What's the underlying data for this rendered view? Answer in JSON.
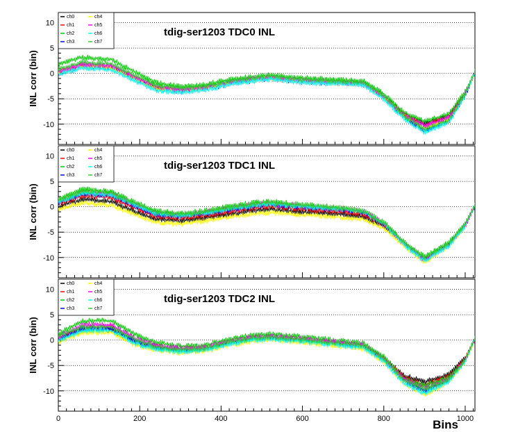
{
  "chart_data": {
    "type": "line",
    "xlabel": "Bins",
    "xlim": [
      0,
      1024
    ],
    "x_ticks": [
      "0",
      "200",
      "400",
      "600",
      "800",
      "1000"
    ],
    "series_colors": {
      "ch0": "#000000",
      "ch1": "#ff0000",
      "ch2": "#00cc00",
      "ch3": "#0000ff",
      "ch4": "#ffff00",
      "ch5": "#ff00ff",
      "ch6": "#00ffff",
      "ch7": "#33cc33"
    },
    "panels": [
      {
        "title": "tdig-ser1203 TDC0 INL",
        "ylabel": "INL corr (bin)",
        "ylim": [
          -14,
          12
        ],
        "y_ticks": [
          "10",
          "5",
          "0",
          "-5",
          "-10"
        ],
        "grid": "horizontal dotted at 10, 5, 0, -5, -10",
        "legend": [
          "ch0",
          "ch1",
          "ch2",
          "ch3",
          "ch4",
          "ch5",
          "ch6",
          "ch7"
        ],
        "x": [
          0,
          60,
          130,
          190,
          240,
          300,
          360,
          420,
          480,
          520,
          600,
          700,
          750,
          800,
          850,
          900,
          960,
          1000,
          1024
        ],
        "series": [
          {
            "name": "ch0",
            "values": [
              0.2,
              1.5,
              1.2,
              -1.0,
              -2.8,
              -3.3,
              -2.8,
              -1.8,
              -1.2,
              -0.8,
              -1.5,
              -1.8,
              -2.0,
              -4.5,
              -8.0,
              -10.0,
              -8.5,
              -4.0,
              0.3
            ]
          },
          {
            "name": "ch1",
            "values": [
              0.3,
              1.6,
              1.3,
              -1.0,
              -2.8,
              -3.4,
              -2.9,
              -1.9,
              -1.3,
              -0.9,
              -1.6,
              -1.9,
              -2.1,
              -4.6,
              -8.2,
              -10.2,
              -8.6,
              -4.1,
              0.3
            ]
          },
          {
            "name": "ch2",
            "values": [
              1.8,
              3.2,
              2.8,
              0.2,
              -1.8,
              -2.6,
              -2.2,
              -1.2,
              -0.6,
              -0.2,
              -0.9,
              -1.3,
              -1.5,
              -4.0,
              -7.8,
              -9.5,
              -8.0,
              -3.6,
              0.3
            ]
          },
          {
            "name": "ch3",
            "values": [
              0.0,
              1.3,
              1.0,
              -1.3,
              -3.1,
              -3.6,
              -3.1,
              -2.1,
              -1.4,
              -1.0,
              -1.7,
              -2.0,
              -2.2,
              -4.9,
              -8.7,
              -11.3,
              -9.4,
              -4.3,
              0.3
            ]
          },
          {
            "name": "ch4",
            "values": [
              0.1,
              1.4,
              1.1,
              -1.2,
              -3.0,
              -3.5,
              -3.0,
              -2.0,
              -1.3,
              -0.9,
              -1.6,
              -1.9,
              -2.1,
              -4.8,
              -8.5,
              -10.8,
              -9.0,
              -4.2,
              0.3
            ]
          },
          {
            "name": "ch5",
            "values": [
              0.4,
              1.8,
              1.5,
              -0.8,
              -2.6,
              -3.2,
              -2.7,
              -1.7,
              -1.1,
              -0.7,
              -1.4,
              -1.8,
              -2.0,
              -4.6,
              -8.3,
              -10.3,
              -8.7,
              -4.0,
              0.3
            ]
          },
          {
            "name": "ch6",
            "values": [
              -0.2,
              1.1,
              0.8,
              -1.5,
              -3.3,
              -3.8,
              -3.3,
              -2.2,
              -1.5,
              -1.1,
              -1.8,
              -2.1,
              -2.3,
              -5.1,
              -9.0,
              -11.6,
              -9.6,
              -4.4,
              0.3
            ]
          },
          {
            "name": "ch7",
            "values": [
              0.8,
              2.2,
              1.9,
              -0.5,
              -2.3,
              -2.9,
              -2.5,
              -1.5,
              -0.9,
              -0.5,
              -1.2,
              -1.6,
              -1.8,
              -4.4,
              -8.4,
              -11.0,
              -9.2,
              -4.1,
              0.3
            ]
          }
        ]
      },
      {
        "title": "tdig-ser1203 TDC1 INL",
        "ylabel": "INL corr (bin)",
        "ylim": [
          -14,
          12
        ],
        "y_ticks": [
          "10",
          "5",
          "0",
          "-5",
          "-10"
        ],
        "grid": "horizontal dotted at 10, 5, 0, -5, -10",
        "legend": [
          "ch0",
          "ch1",
          "ch2",
          "ch3",
          "ch4",
          "ch5",
          "ch6",
          "ch7"
        ],
        "x": [
          0,
          60,
          130,
          190,
          240,
          300,
          360,
          420,
          480,
          520,
          600,
          700,
          750,
          800,
          850,
          900,
          960,
          1000,
          1024
        ],
        "series": [
          {
            "name": "ch0",
            "values": [
              0.0,
              1.5,
              1.0,
              -1.0,
              -2.5,
              -2.8,
              -2.2,
              -1.5,
              -0.8,
              -0.5,
              -1.0,
              -1.5,
              -2.0,
              -3.8,
              -7.0,
              -10.2,
              -7.2,
              -3.5,
              0.3
            ]
          },
          {
            "name": "ch1",
            "values": [
              0.5,
              2.2,
              1.8,
              -0.3,
              -1.9,
              -2.3,
              -1.8,
              -1.0,
              -0.3,
              0.0,
              -0.5,
              -1.0,
              -1.5,
              -3.5,
              -7.2,
              -10.4,
              -7.4,
              -3.6,
              0.3
            ]
          },
          {
            "name": "ch2",
            "values": [
              1.5,
              3.5,
              3.0,
              0.8,
              -0.8,
              -1.3,
              -0.8,
              0.1,
              0.8,
              1.1,
              0.4,
              -0.2,
              -0.8,
              -3.0,
              -7.0,
              -9.8,
              -7.0,
              -3.3,
              0.3
            ]
          },
          {
            "name": "ch3",
            "values": [
              0.8,
              2.6,
              2.2,
              0.1,
              -1.5,
              -1.9,
              -1.4,
              -0.6,
              0.1,
              0.4,
              -0.1,
              -0.6,
              -1.1,
              -3.3,
              -7.3,
              -10.5,
              -7.5,
              -3.7,
              0.3
            ]
          },
          {
            "name": "ch4",
            "values": [
              -0.5,
              0.8,
              0.3,
              -1.6,
              -3.1,
              -3.4,
              -2.8,
              -2.0,
              -1.4,
              -1.1,
              -1.6,
              -2.1,
              -2.5,
              -4.3,
              -7.7,
              -11.0,
              -7.8,
              -3.9,
              0.3
            ]
          },
          {
            "name": "ch5",
            "values": [
              1.0,
              2.9,
              2.5,
              0.4,
              -1.2,
              -1.6,
              -1.1,
              -0.3,
              0.4,
              0.7,
              0.2,
              -0.4,
              -0.9,
              -3.2,
              -7.4,
              -10.6,
              -7.6,
              -3.7,
              0.3
            ]
          },
          {
            "name": "ch6",
            "values": [
              0.9,
              2.7,
              2.3,
              0.2,
              -1.4,
              -1.8,
              -1.3,
              -0.5,
              0.2,
              0.5,
              0.0,
              -0.5,
              -1.0,
              -3.3,
              -7.5,
              -10.7,
              -7.7,
              -3.8,
              0.3
            ]
          },
          {
            "name": "ch7",
            "values": [
              1.2,
              3.1,
              2.7,
              0.6,
              -1.0,
              -1.5,
              -1.0,
              -0.2,
              0.5,
              0.8,
              0.3,
              -0.3,
              -0.9,
              -3.1,
              -7.1,
              -10.0,
              -7.2,
              -3.5,
              0.3
            ]
          }
        ]
      },
      {
        "title": "tdig-ser1203 TDC2 INL",
        "ylabel": "INL corr (bin)",
        "ylim": [
          -14,
          12
        ],
        "y_ticks": [
          "10",
          "5",
          "0",
          "-5",
          "-10"
        ],
        "grid": "horizontal dotted at 10, 5, 0, -5, -10",
        "legend": [
          "ch0",
          "ch1",
          "ch2",
          "ch3",
          "ch4",
          "ch5",
          "ch6",
          "ch7"
        ],
        "x": [
          0,
          60,
          130,
          190,
          240,
          300,
          360,
          420,
          480,
          520,
          600,
          700,
          750,
          800,
          850,
          900,
          960,
          1000,
          1024
        ],
        "series": [
          {
            "name": "ch0",
            "values": [
              0.0,
              2.0,
              2.0,
              -0.5,
              -1.5,
              -2.0,
              -1.8,
              -0.5,
              0.3,
              0.5,
              0.0,
              -0.8,
              -1.2,
              -3.5,
              -7.0,
              -8.2,
              -6.8,
              -3.5,
              0.3
            ]
          },
          {
            "name": "ch1",
            "values": [
              0.3,
              2.6,
              2.6,
              0.0,
              -1.2,
              -1.8,
              -1.6,
              -0.4,
              0.4,
              0.6,
              0.1,
              -0.7,
              -1.1,
              -3.6,
              -7.4,
              -8.8,
              -7.2,
              -3.8,
              0.3
            ]
          },
          {
            "name": "ch2",
            "values": [
              1.2,
              3.8,
              3.8,
              1.0,
              -0.5,
              -1.2,
              -1.0,
              0.2,
              1.0,
              1.2,
              0.7,
              -0.2,
              -0.6,
              -3.2,
              -7.6,
              -9.0,
              -7.4,
              -3.9,
              0.3
            ]
          },
          {
            "name": "ch3",
            "values": [
              0.1,
              2.3,
              2.3,
              -0.3,
              -1.4,
              -2.0,
              -1.8,
              -0.6,
              0.2,
              0.4,
              -0.1,
              -0.9,
              -1.3,
              -3.9,
              -8.0,
              -10.0,
              -7.9,
              -4.1,
              0.3
            ]
          },
          {
            "name": "ch4",
            "values": [
              -0.3,
              1.5,
              1.5,
              -1.0,
              -2.0,
              -2.5,
              -2.2,
              -1.0,
              -0.2,
              0.0,
              -0.5,
              -1.3,
              -1.7,
              -4.3,
              -8.6,
              -10.8,
              -8.3,
              -4.3,
              0.3
            ]
          },
          {
            "name": "ch5",
            "values": [
              0.6,
              3.0,
              3.0,
              0.3,
              -1.0,
              -1.6,
              -1.4,
              -0.2,
              0.6,
              0.8,
              0.3,
              -0.5,
              -0.9,
              -3.7,
              -7.8,
              -9.5,
              -7.7,
              -4.0,
              0.3
            ]
          },
          {
            "name": "ch6",
            "values": [
              -0.1,
              1.9,
              1.9,
              -0.7,
              -1.8,
              -2.3,
              -2.0,
              -0.8,
              0.0,
              0.2,
              -0.3,
              -1.1,
              -1.5,
              -4.2,
              -8.5,
              -10.5,
              -8.2,
              -4.2,
              0.3
            ]
          },
          {
            "name": "ch7",
            "values": [
              0.8,
              2.6,
              2.6,
              0.0,
              -1.3,
              -1.9,
              -1.6,
              -0.4,
              0.4,
              0.6,
              0.1,
              -0.7,
              -1.1,
              -3.7,
              -7.9,
              -9.7,
              -7.8,
              -4.0,
              0.3
            ]
          }
        ]
      }
    ]
  }
}
